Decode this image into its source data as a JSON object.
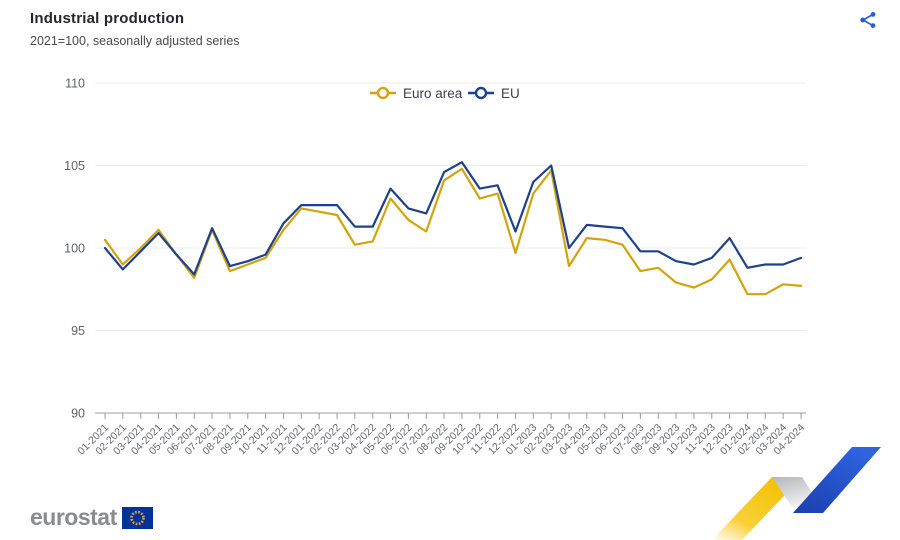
{
  "header": {
    "title": "Industrial production",
    "subtitle": "2021=100, seasonally adjusted series",
    "share_icon": "share-icon"
  },
  "colors": {
    "euro_area": "#d2a30b",
    "eu": "#1e418e",
    "grid": "#ececf3",
    "axis": "#9b9da1",
    "ytick_label": "#5f6266",
    "xtick_label": "#67696d",
    "title": "#25262e",
    "subtitle": "#4a4a4c",
    "legend_text": "#3c3f4e",
    "share": "#2a5bd7",
    "logo_gray": "#898b8f",
    "flag_blue": "#003399",
    "flag_stars": "#e8a23c",
    "ribbon_yellow": "#f2c101",
    "ribbon_gray": "#b5b6ba",
    "ribbon_blue": "#1d4ed0"
  },
  "chart_data": {
    "type": "line",
    "title": "Industrial production",
    "subtitle": "2021=100, seasonally adjusted series",
    "categories": [
      "01-2021",
      "02-2021",
      "03-2021",
      "04-2021",
      "05-2021",
      "06-2021",
      "07-2021",
      "08-2021",
      "09-2021",
      "10-2021",
      "11-2021",
      "12-2021",
      "01-2022",
      "02-2022",
      "03-2022",
      "04-2022",
      "05-2022",
      "06-2022",
      "07-2022",
      "08-2022",
      "09-2022",
      "10-2022",
      "11-2022",
      "12-2022",
      "01-2023",
      "02-2023",
      "03-2023",
      "04-2023",
      "05-2023",
      "06-2023",
      "07-2023",
      "08-2023",
      "09-2023",
      "10-2023",
      "11-2023",
      "12-2023",
      "01-2024",
      "02-2024",
      "03-2024",
      "04-2024"
    ],
    "series": [
      {
        "name": "Euro area",
        "color": "#d2a30b",
        "values": [
          100.5,
          99.0,
          100.0,
          101.1,
          99.6,
          98.2,
          101.1,
          98.6,
          99.0,
          99.4,
          101.1,
          102.4,
          102.2,
          102.0,
          100.2,
          100.4,
          103.0,
          101.7,
          101.0,
          104.1,
          104.8,
          103.0,
          103.3,
          99.7,
          103.3,
          104.7,
          98.9,
          100.6,
          100.5,
          100.2,
          98.6,
          98.8,
          97.9,
          97.6,
          98.1,
          99.3,
          97.2,
          97.2,
          97.8,
          97.7
        ]
      },
      {
        "name": "EU",
        "color": "#1e418e",
        "values": [
          100.0,
          98.7,
          99.8,
          100.9,
          99.6,
          98.4,
          101.2,
          98.9,
          99.2,
          99.6,
          101.5,
          102.6,
          102.6,
          102.6,
          101.3,
          101.3,
          103.6,
          102.4,
          102.1,
          104.6,
          105.2,
          103.6,
          103.8,
          101.0,
          104.0,
          105.0,
          100.0,
          101.4,
          101.3,
          101.2,
          99.8,
          99.8,
          99.2,
          99.0,
          99.4,
          100.6,
          98.8,
          99.0,
          99.0,
          99.4
        ]
      }
    ],
    "ylim": [
      90,
      110
    ],
    "yticks": [
      90,
      95,
      100,
      105,
      110
    ],
    "grid": "horizontal",
    "legend_position": "top-center",
    "xlabel": "",
    "ylabel": ""
  },
  "footer": {
    "logo_text": "eurostat",
    "flag_icon": "eu-flag-icon",
    "ribbon_graphic": "eurostat-ribbon-graphic"
  }
}
